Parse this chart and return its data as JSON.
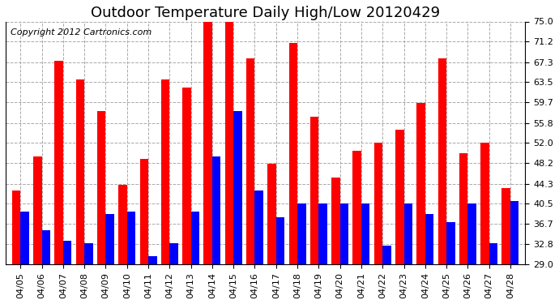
{
  "title": "Outdoor Temperature Daily High/Low 20120429",
  "copyright": "Copyright 2012 Cartronics.com",
  "dates": [
    "04/05",
    "04/06",
    "04/07",
    "04/08",
    "04/09",
    "04/10",
    "04/11",
    "04/12",
    "04/13",
    "04/14",
    "04/15",
    "04/16",
    "04/17",
    "04/18",
    "04/19",
    "04/20",
    "04/21",
    "04/22",
    "04/23",
    "04/24",
    "04/25",
    "04/26",
    "04/27",
    "04/28"
  ],
  "highs": [
    43.0,
    49.5,
    67.5,
    64.0,
    58.0,
    44.0,
    49.0,
    64.0,
    62.5,
    75.0,
    75.0,
    68.0,
    48.0,
    71.0,
    57.0,
    45.5,
    50.5,
    52.0,
    54.5,
    59.5,
    68.0,
    50.0,
    52.0,
    43.5
  ],
  "lows": [
    39.0,
    35.5,
    33.5,
    33.0,
    38.5,
    39.0,
    30.5,
    33.0,
    39.0,
    49.5,
    58.0,
    43.0,
    38.0,
    40.5,
    40.5,
    40.5,
    40.5,
    32.5,
    40.5,
    38.5,
    37.0,
    40.5,
    33.0,
    41.0
  ],
  "high_color": "#ff0000",
  "low_color": "#0000ff",
  "background_color": "#ffffff",
  "grid_color": "#aaaaaa",
  "ylim": [
    29.0,
    75.0
  ],
  "yticks": [
    29.0,
    32.8,
    36.7,
    40.5,
    44.3,
    48.2,
    52.0,
    55.8,
    59.7,
    63.5,
    67.3,
    71.2,
    75.0
  ],
  "title_fontsize": 13,
  "copyright_fontsize": 8,
  "tick_fontsize": 8
}
